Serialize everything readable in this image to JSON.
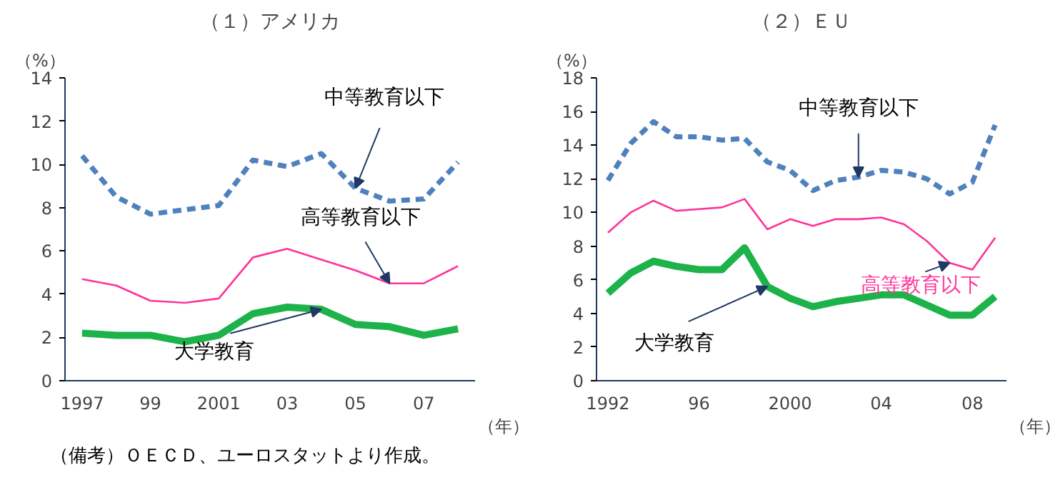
{
  "chart_data": [
    {
      "type": "line",
      "title": "（１）アメリカ",
      "xlabel": "（年）",
      "ylabel": "（%）",
      "x": [
        1997,
        1998,
        1999,
        2000,
        2001,
        2002,
        2003,
        2004,
        2005,
        2006,
        2007,
        2008
      ],
      "series": [
        {
          "name": "中等教育以下",
          "color": "#4f81bd",
          "line_style": "dashed",
          "values": [
            10.4,
            8.5,
            7.7,
            7.9,
            8.1,
            10.2,
            9.9,
            10.5,
            8.9,
            8.3,
            8.4,
            10.1
          ]
        },
        {
          "name": "高等教育以下",
          "color": "#ff3399",
          "line_style": "solid",
          "values": [
            4.7,
            4.4,
            3.7,
            3.6,
            3.8,
            5.7,
            6.1,
            5.6,
            5.1,
            4.5,
            4.5,
            5.3
          ]
        },
        {
          "name": "大学教育",
          "color": "#1db34a",
          "line_style": "solid",
          "values": [
            2.2,
            2.1,
            2.1,
            1.8,
            2.1,
            3.1,
            3.4,
            3.3,
            2.6,
            2.5,
            2.1,
            2.4
          ]
        }
      ],
      "xlim": [
        1996.5,
        2008.5
      ],
      "xticks": [
        {
          "value": 1997,
          "label": "1997"
        },
        {
          "value": 1999,
          "label": "99"
        },
        {
          "value": 2001,
          "label": "2001"
        },
        {
          "value": 2003,
          "label": "03"
        },
        {
          "value": 2005,
          "label": "05"
        },
        {
          "value": 2007,
          "label": "07"
        }
      ],
      "ylim": [
        0,
        14
      ],
      "yticks": [
        0,
        2,
        4,
        6,
        8,
        10,
        12,
        14
      ],
      "grid": false,
      "marker": "none",
      "annotations": [
        "（備考）ＯＥＣＤ、ユーロスタットより作成。"
      ]
    },
    {
      "type": "line",
      "title": "（２）ＥＵ",
      "xlabel": "（年）",
      "ylabel": "（%）",
      "x": [
        1992,
        1993,
        1994,
        1995,
        1996,
        1997,
        1998,
        1999,
        2000,
        2001,
        2002,
        2003,
        2004,
        2005,
        2006,
        2007,
        2008,
        2009
      ],
      "series": [
        {
          "name": "中等教育以下",
          "color": "#4f81bd",
          "line_style": "dashed",
          "values": [
            11.9,
            14.1,
            15.4,
            14.5,
            14.5,
            14.3,
            14.4,
            13.0,
            12.5,
            11.3,
            11.9,
            12.1,
            12.5,
            12.4,
            12.0,
            11.1,
            11.8,
            15.2
          ]
        },
        {
          "name": "高等教育以下",
          "color": "#ff3399",
          "line_style": "solid",
          "values": [
            8.8,
            10.0,
            10.7,
            10.1,
            10.2,
            10.3,
            10.8,
            9.0,
            9.6,
            9.2,
            9.6,
            9.6,
            9.7,
            9.3,
            8.3,
            7.0,
            6.6,
            8.5
          ]
        },
        {
          "name": "大学教育",
          "color": "#1db34a",
          "line_style": "solid",
          "values": [
            5.2,
            6.4,
            7.1,
            6.8,
            6.6,
            6.6,
            7.9,
            5.6,
            4.9,
            4.4,
            4.7,
            4.9,
            5.1,
            5.1,
            4.5,
            3.9,
            3.9,
            5.0
          ]
        }
      ],
      "xlim": [
        1991.5,
        2009.5
      ],
      "xticks": [
        {
          "value": 1992,
          "label": "1992"
        },
        {
          "value": 1996,
          "label": "96"
        },
        {
          "value": 2000,
          "label": "2000"
        },
        {
          "value": 2004,
          "label": "04"
        },
        {
          "value": 2008,
          "label": "08"
        }
      ],
      "ylim": [
        0,
        18
      ],
      "yticks": [
        0,
        2,
        4,
        6,
        8,
        10,
        12,
        14,
        16,
        18
      ],
      "grid": false,
      "marker": "none"
    }
  ]
}
